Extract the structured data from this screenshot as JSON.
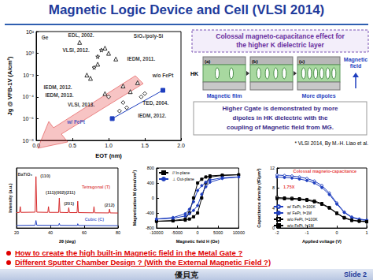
{
  "title": "Magnetic Logic Device and Cell (VLSI 2014)",
  "chart_data": [
    {
      "type": "scatter",
      "x_label": "EOT (nm)",
      "y_label": "Jg @ VFB-1V (A/cm²)",
      "log": "y",
      "grid": false,
      "xlim": [
        0,
        2
      ],
      "xticks": [
        {
          "value": 0,
          "label": "0.0"
        },
        {
          "value": 0.5,
          "label": "0.5"
        },
        {
          "value": 1,
          "label": "1.0"
        },
        {
          "value": 1.5,
          "label": "1.5"
        },
        {
          "value": 2,
          "label": "2.0"
        }
      ],
      "ylim": [
        1e-08,
        100
      ],
      "yticks": [
        {
          "value": 1e-08,
          "label": "10⁻⁸"
        },
        {
          "value": 1e-06,
          "label": "10⁻⁶"
        },
        {
          "value": 0.0001,
          "label": "10⁻⁴"
        },
        {
          "value": 0.01,
          "label": "10⁻²"
        },
        {
          "value": 1,
          "label": "10⁰"
        },
        {
          "value": 100,
          "label": "10²"
        }
      ],
      "series": [
        {
          "type": "scatter",
          "marker": "open_triangle",
          "color": "#000000",
          "x": [
            0.6,
            0.95,
            1.0,
            0.85,
            1.1,
            0.75,
            0.7,
            1.2,
            1.3,
            0.95,
            1.4
          ],
          "y": [
            10,
            3,
            1,
            0.1,
            0.3,
            0.005,
            0.01,
            0.001,
            0.0003,
            0.0002,
            0.002
          ]
        },
        {
          "type": "scatter",
          "marker": "open_star",
          "color": "#000000",
          "x": [
            0.85,
            0.8,
            0.9
          ],
          "y": [
            0.5,
            0.05,
            2
          ]
        },
        {
          "type": "scatter",
          "marker": "open_diamond",
          "color": "#000000",
          "x": [
            1.0,
            1.2,
            1.25,
            1.45,
            1.5,
            1.15
          ],
          "y": [
            0.0001,
            3e-05,
            1e-05,
            0.0001,
            0.0002,
            5e-06
          ]
        },
        {
          "type": "line",
          "marker": "square",
          "color": "#1f3fbf",
          "x": [
            1.05,
            1.75
          ],
          "y": [
            1e-06,
            0.0004
          ]
        }
      ],
      "annotations": [
        {
          "x": 0.12,
          "y": 30,
          "text": "Ge"
        },
        {
          "x": 1.55,
          "y": 40,
          "text": "SiO₂/poly-Si"
        },
        {
          "x": 0.62,
          "y": 50,
          "text": "EDL, 2002."
        },
        {
          "x": 0.55,
          "y": 2,
          "text": "VLSI, 2012."
        },
        {
          "x": 1.45,
          "y": 0.3,
          "text": "IEDM, 2011."
        },
        {
          "x": 1.75,
          "y": 0.01,
          "text": "w/o FePt"
        },
        {
          "x": 0.3,
          "y": 0.0008,
          "text": "IEDM, 2012."
        },
        {
          "x": 0.32,
          "y": 0.00015,
          "text": "IEDM, 2013."
        },
        {
          "x": 0.62,
          "y": 2e-05,
          "text": "VLSI, 2013."
        },
        {
          "x": 1.65,
          "y": 3e-05,
          "text": "TED, 2004."
        },
        {
          "x": 1.6,
          "y": 2e-06,
          "text": "IEDM, 2012."
        },
        {
          "x": 0.55,
          "y": 5e-07,
          "text": "w/ FePt",
          "color": "#1f3fbf"
        }
      ]
    },
    {
      "type": "line",
      "x_label": "2θ (deg)",
      "y_label": "Intensity (a.u.)",
      "grid": false,
      "tick_labels": "x",
      "xlim": [
        20,
        80
      ],
      "xticks": [
        20,
        40,
        60,
        80
      ],
      "ylim": [
        0,
        2800
      ],
      "series": [
        {
          "marker": "none",
          "color": "#d62728",
          "x": [
            20,
            21.8,
            22.2,
            22.6,
            31,
            31.5,
            32,
            38.5,
            38.9,
            39.3,
            44.9,
            45.3,
            45.7,
            50.5,
            50.9,
            51.3,
            55.8,
            56.2,
            56.6,
            65.4,
            65.8,
            66.2,
            74.6,
            75,
            75.4,
            80
          ],
          "y": [
            720,
            730,
            1000,
            730,
            740,
            2400,
            740,
            730,
            1000,
            730,
            730,
            1400,
            730,
            720,
            950,
            720,
            720,
            1250,
            720,
            710,
            1000,
            710,
            705,
            880,
            705,
            700
          ]
        },
        {
          "marker": "none",
          "color": "#1f3fbf",
          "x": [
            20,
            31,
            31.5,
            32,
            44.9,
            45.3,
            45.7,
            56,
            56.2,
            56.6,
            80
          ],
          "y": [
            120,
            130,
            350,
            130,
            125,
            220,
            125,
            120,
            200,
            120,
            110
          ]
        }
      ],
      "annotations": [
        {
          "x": 25,
          "y": 2500,
          "text": "BaTiO₃"
        },
        {
          "x": 37,
          "y": 2450,
          "text": "(110)"
        },
        {
          "x": 46,
          "y": 1650,
          "text": "(111)(002)(211)"
        },
        {
          "x": 51,
          "y": 1150,
          "text": "(201)"
        },
        {
          "x": 75,
          "y": 1080,
          "text": "(212)"
        },
        {
          "x": 67,
          "y": 1900,
          "text": "Tetragonal (T)",
          "color": "#d62728"
        },
        {
          "x": 66,
          "y": 400,
          "text": "Cubic (C)",
          "color": "#1f3fbf"
        }
      ]
    },
    {
      "type": "line",
      "x_label": "Magnetic field H (Oe)",
      "y_label": "Magnetization M (emu/cm³)",
      "grid": false,
      "legend": "upper left",
      "xlim": [
        -10000,
        10000
      ],
      "xticks": [
        -10000,
        -5000,
        0,
        5000,
        10000
      ],
      "ylim": [
        -800,
        800
      ],
      "yticks": [
        -800,
        -400,
        0,
        400,
        800
      ],
      "series": [
        {
          "name": "// In-plane",
          "marker": "square",
          "color": "#000000",
          "x": [
            -10000,
            -6000,
            -3000,
            -2000,
            -1000,
            0,
            1000,
            2000,
            3000,
            6000,
            10000,
            6000,
            3000,
            2000,
            1000,
            0,
            -1000,
            -2000,
            -3000,
            -6000,
            -10000
          ],
          "y": [
            -620,
            -610,
            -590,
            -560,
            -500,
            -400,
            0,
            400,
            560,
            600,
            620,
            610,
            590,
            560,
            500,
            400,
            0,
            -400,
            -560,
            -600,
            -620
          ]
        },
        {
          "name": "⊥ Out-plane",
          "marker": "circle",
          "color": "#1f3fbf",
          "x": [
            -10000,
            -6000,
            -3000,
            -2000,
            -1000,
            0,
            1000,
            2000,
            3000,
            6000,
            10000,
            6000,
            3000,
            2000,
            1000,
            0,
            -1000,
            -2000,
            -3000,
            -6000,
            -10000
          ],
          "y": [
            -560,
            -540,
            -480,
            -420,
            -330,
            -200,
            100,
            300,
            420,
            520,
            560,
            540,
            480,
            420,
            330,
            200,
            -100,
            -300,
            -420,
            -520,
            -560
          ]
        }
      ]
    },
    {
      "type": "line",
      "x_label": "Applied voltage (V)",
      "y_label": "Capacitance density (fF/μm²)",
      "grid": false,
      "legend": "lower left",
      "xlim": [
        -2,
        1
      ],
      "xticks": [
        -2,
        -1,
        0,
        1
      ],
      "ylim": [
        0,
        12
      ],
      "yticks": [
        0,
        4,
        8,
        12
      ],
      "series": [
        {
          "name": "w/ FePt, f=100K",
          "marker": "open_circle",
          "color": "#1f3fbf",
          "x": [
            -2,
            -1.75,
            -1.5,
            -1.25,
            -1,
            -0.75,
            -0.5,
            -0.25,
            0,
            0.25,
            0.5,
            0.75,
            1
          ],
          "y": [
            10.6,
            10.5,
            10.4,
            10.2,
            9.9,
            9.4,
            8.5,
            7.0,
            5.0,
            3.2,
            2.2,
            1.8,
            1.6
          ]
        },
        {
          "name": "w/ FePt, f=1M",
          "marker": "circle",
          "color": "#1f3fbf",
          "x": [
            -2,
            -1.75,
            -1.5,
            -1.25,
            -1,
            -0.75,
            -0.5,
            -0.25,
            0,
            0.25,
            0.5,
            0.75,
            1
          ],
          "y": [
            10.2,
            10.1,
            10.0,
            9.8,
            9.5,
            9.0,
            8.1,
            6.7,
            4.8,
            3.1,
            2.1,
            1.7,
            1.5
          ]
        },
        {
          "name": "w/o FePt, f=100K",
          "marker": "open_square",
          "color": "#000000",
          "x": [
            -2,
            -1.75,
            -1.5,
            -1.25,
            -1,
            -0.75,
            -0.5,
            -0.25,
            0,
            0.25,
            0.5,
            0.75,
            1
          ],
          "y": [
            6.1,
            6.0,
            5.95,
            5.85,
            5.7,
            5.4,
            4.9,
            4.1,
            3.0,
            2.1,
            1.6,
            1.4,
            1.3
          ]
        },
        {
          "name": "w/o FePt, f=1M",
          "marker": "square",
          "color": "#000000",
          "x": [
            -2,
            -1.75,
            -1.5,
            -1.25,
            -1,
            -0.75,
            -0.5,
            -0.25,
            0,
            0.25,
            0.5,
            0.75,
            1
          ],
          "y": [
            5.9,
            5.85,
            5.8,
            5.7,
            5.55,
            5.25,
            4.75,
            4.0,
            2.9,
            2.0,
            1.5,
            1.35,
            1.25
          ]
        }
      ],
      "annotations": [
        {
          "x": -0.4,
          "y": 11.3,
          "text": "Colossal magneto-capacitance",
          "color": "#e00000"
        },
        {
          "x": -1.6,
          "y": 8.2,
          "text": "1.75X",
          "color": "#e00000"
        }
      ]
    }
  ],
  "diagram": {
    "header": [
      "Colossal magneto-capacitance effect for",
      "the higher K dielectric layer"
    ],
    "panels": [
      "(a)",
      "(b)",
      "(c)"
    ],
    "hk": "HK",
    "magnetic_field": "Magnetic field",
    "magnetic_film": "Magnetic film",
    "more_dipoles": "More dipoles",
    "caption": [
      "Higher Cgate is demonstrated by more",
      "dipoles in HK dielectric with the",
      "coupling of Magnetic field from MG."
    ],
    "reference": "* VLSI 2014, By M.-H. Liao et al."
  },
  "bullets": [
    "How to create the high built-in Magnetic field in the Metal Gate ?",
    "Different Sputter Chamber Design ? (With the External Magnetic Field ?)"
  ],
  "footer": {
    "center": "優貝克",
    "right": "Slide 2"
  }
}
